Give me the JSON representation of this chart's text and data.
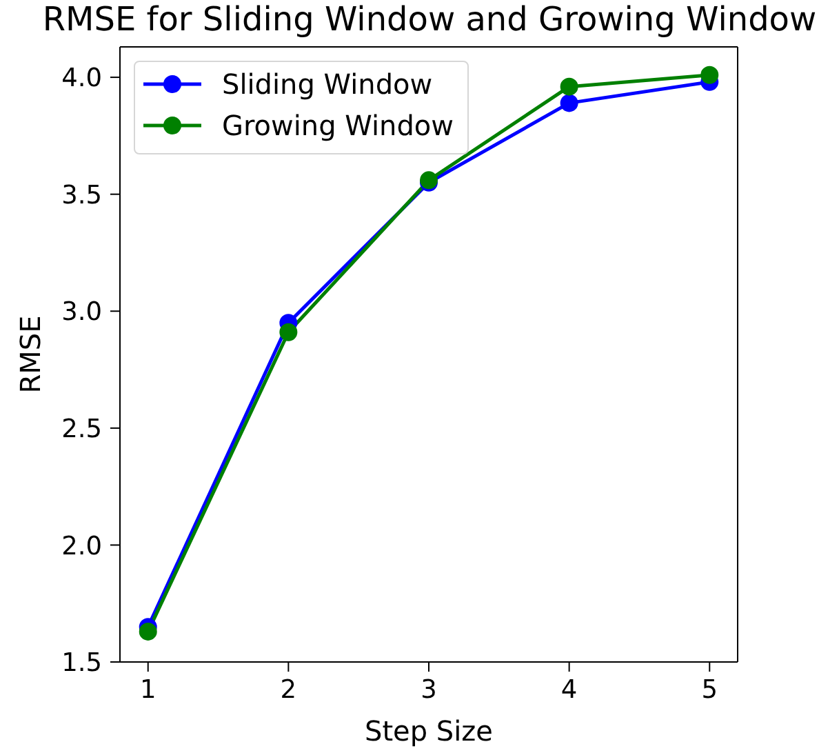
{
  "chart_data": {
    "type": "line",
    "title": "RMSE for Sliding Window and Growing Window",
    "xlabel": "Step Size",
    "ylabel": "RMSE",
    "x": [
      1,
      2,
      3,
      4,
      5
    ],
    "series": [
      {
        "name": "Sliding Window",
        "color": "#0000ff",
        "values": [
          1.65,
          2.95,
          3.55,
          3.89,
          3.98
        ]
      },
      {
        "name": "Growing Window",
        "color": "#008000",
        "values": [
          1.63,
          2.91,
          3.56,
          3.96,
          4.01
        ]
      }
    ],
    "xlim": [
      0.8,
      5.2
    ],
    "xticks": [
      1,
      2,
      3,
      4,
      5
    ],
    "ylim": [
      1.5,
      4.13
    ],
    "yticks": [
      1.5,
      {
        "value": 2,
        "label": "2.0"
      },
      2.5,
      {
        "value": 3,
        "label": "3.0"
      },
      3.5,
      {
        "value": 4,
        "label": "4.0"
      }
    ],
    "legend": "top left",
    "marker": "circle",
    "line_style": "solid"
  }
}
